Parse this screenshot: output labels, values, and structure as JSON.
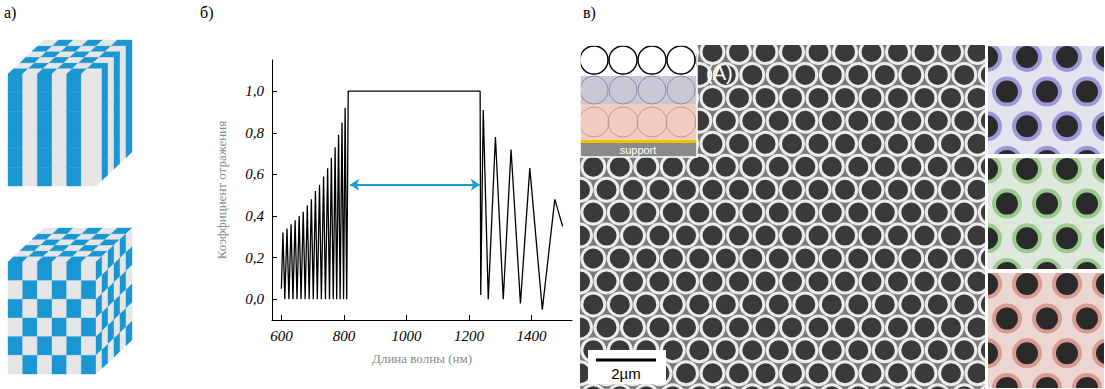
{
  "chart_data": {
    "type": "line",
    "xlabel": "Длина волны (нм)",
    "ylabel": "Коэффициент отражения",
    "x": [
      600,
      605,
      611,
      618,
      624,
      631,
      637,
      644,
      650,
      657,
      663,
      670,
      676,
      683,
      689,
      696,
      702,
      709,
      715,
      722,
      728,
      735,
      741,
      748,
      754,
      760,
      766,
      772,
      777,
      783,
      788,
      794,
      799,
      804,
      809,
      814,
      1236,
      1238,
      1246,
      1262,
      1285,
      1310,
      1335,
      1365,
      1395,
      1435,
      1475,
      1500
    ],
    "values": [
      0.05,
      0.32,
      0,
      0.34,
      0,
      0.36,
      0,
      0.38,
      0,
      0.4,
      0,
      0.42,
      0,
      0.45,
      0,
      0.48,
      0,
      0.52,
      0,
      0.55,
      0,
      0.59,
      0,
      0.63,
      0,
      0.68,
      0,
      0.73,
      0,
      0.79,
      0,
      0.85,
      0,
      0.92,
      0,
      1.0,
      1.0,
      0.02,
      0.91,
      0,
      0.78,
      0,
      0.72,
      -0.02,
      0.63,
      -0.05,
      0.48,
      0.35
    ],
    "color": "#000000",
    "xlim": [
      570,
      1530
    ],
    "xticks": [
      600,
      800,
      1000,
      1200,
      1400
    ],
    "ylim": [
      -0.1,
      1.15
    ],
    "yticks": [
      {
        "value": 0,
        "label": "0,0"
      },
      {
        "value": 0.2,
        "label": "0,2"
      },
      {
        "value": 0.4,
        "label": "0,4"
      },
      {
        "value": 0.6,
        "label": "0,6"
      },
      {
        "value": 0.8,
        "label": "0,8"
      },
      {
        "value": 1.0,
        "label": "1,0"
      }
    ],
    "grid": false,
    "arrow": {
      "x": [
        820,
        1235
      ],
      "y": 0.55,
      "color": "#1c9ad6"
    }
  },
  "panels": {
    "a": {
      "label": "а)"
    },
    "b": {
      "label": "б)"
    },
    "c": {
      "label": "в)",
      "inset_label": "(A)",
      "layer_label": "support",
      "scale_bar": "2µm"
    }
  }
}
